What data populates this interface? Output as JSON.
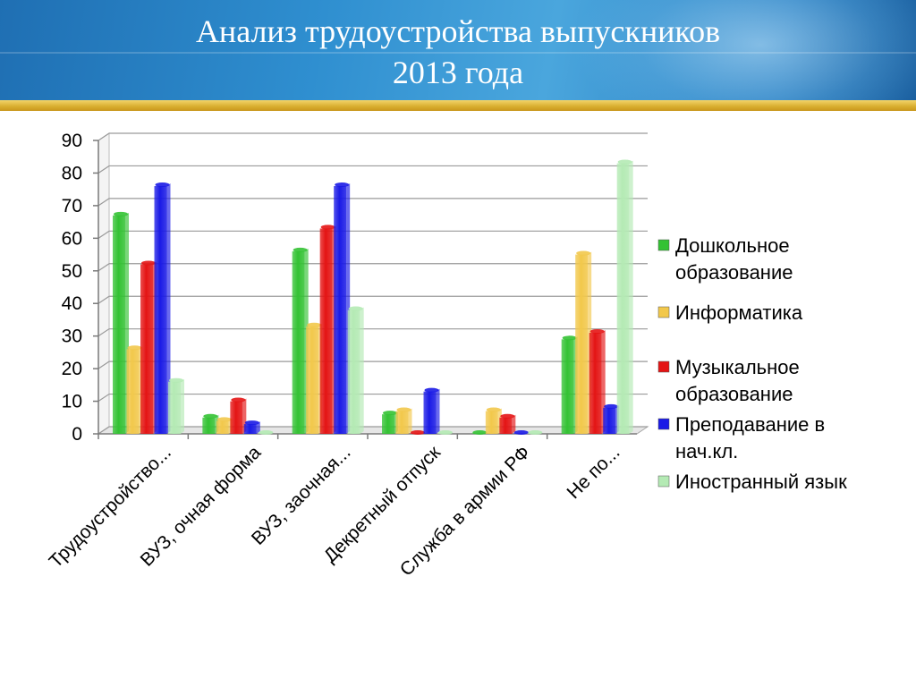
{
  "slide": {
    "title_line1": "Анализ трудоустройства выпускников",
    "title_line2": "2013 года"
  },
  "chart_data": {
    "type": "bar",
    "ylim": [
      0,
      90
    ],
    "yticks": [
      0,
      10,
      20,
      30,
      40,
      50,
      60,
      70,
      80,
      90
    ],
    "categories": [
      "Трудоустройство...",
      "ВУЗ, очная форма",
      "ВУЗ, заочная...",
      "Декретный отпуск",
      "Служба в армии РФ",
      "Не по..."
    ],
    "series": [
      {
        "name": "Дошкольное образование",
        "legend_lines": [
          "Дошкольное",
          "образование"
        ],
        "color": "#33c233",
        "values": [
          67,
          5,
          56,
          6,
          0,
          29
        ]
      },
      {
        "name": "Информатика",
        "legend_lines": [
          "Информатика"
        ],
        "color": "#f2c84b",
        "values": [
          26,
          4,
          33,
          7,
          7,
          55
        ]
      },
      {
        "name": "Музыкальное образование",
        "legend_lines": [
          "Музыкальное",
          "образование"
        ],
        "color": "#e41414",
        "values": [
          52,
          10,
          63,
          0,
          5,
          31
        ]
      },
      {
        "name": "Преподавание в нач.кл.",
        "legend_lines": [
          "Преподавание в",
          "нач.кл."
        ],
        "color": "#1a1ae6",
        "values": [
          76,
          3,
          76,
          13,
          0,
          8
        ]
      },
      {
        "name": "Иностранный язык",
        "legend_lines": [
          "Иностранный язык"
        ],
        "color": "#b4eab4",
        "values": [
          16,
          0,
          38,
          0,
          0,
          83
        ]
      }
    ],
    "legend_position": "right",
    "grid": true
  }
}
